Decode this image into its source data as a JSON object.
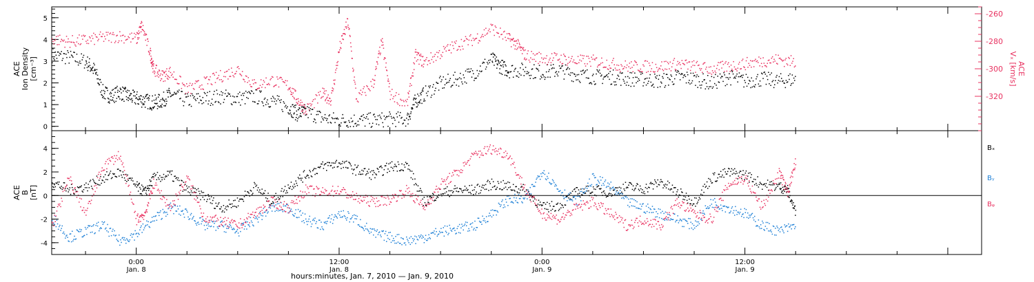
{
  "colors": {
    "black": "#000000",
    "pink": "#e8305f",
    "blue": "#1c7fd6"
  },
  "chart_data": [
    {
      "type": "scatter",
      "panel": "ion-density",
      "ylabel": [
        "ACE",
        "Ion Density",
        "[cm⁻³]"
      ],
      "ylabel_right": [
        "ACE",
        "Vₓ [km/s]"
      ],
      "ylim": [
        -0.2,
        5.5
      ],
      "yticks": [
        0,
        1,
        2,
        3,
        4,
        5
      ],
      "ylim_right": [
        -345,
        -255
      ],
      "yticks_right": [
        -260,
        -280,
        -300,
        -320
      ],
      "xlim_hours": [
        -5,
        50
      ],
      "series": [
        {
          "axis": "left",
          "color": "#000000",
          "points": [
            [
              -5,
              3.3
            ],
            [
              -4,
              3.2
            ],
            [
              -3,
              3.0
            ],
            [
              -2.5,
              2.6
            ],
            [
              -2,
              1.6
            ],
            [
              -1.5,
              1.4
            ],
            [
              -1,
              1.6
            ],
            [
              -0.5,
              1.4
            ],
            [
              0,
              1.3
            ],
            [
              0.5,
              1.2
            ],
            [
              1,
              1.1
            ],
            [
              1.5,
              1.2
            ],
            [
              2,
              1.5
            ],
            [
              3,
              1.2
            ],
            [
              4,
              1.3
            ],
            [
              5,
              1.4
            ],
            [
              6,
              1.3
            ],
            [
              7,
              1.4
            ],
            [
              8,
              1.2
            ],
            [
              9,
              0.9
            ],
            [
              9.5,
              0.6
            ],
            [
              10,
              0.7
            ],
            [
              11,
              0.4
            ],
            [
              12,
              0.3
            ],
            [
              13,
              0.3
            ],
            [
              14,
              0.3
            ],
            [
              15,
              0.35
            ],
            [
              16,
              0.35
            ],
            [
              16.5,
              1.2
            ],
            [
              17,
              1.5
            ],
            [
              18,
              2.0
            ],
            [
              19,
              2.2
            ],
            [
              20,
              2.5
            ],
            [
              21,
              3.1
            ],
            [
              21.5,
              2.8
            ],
            [
              22,
              2.6
            ],
            [
              23,
              2.6
            ],
            [
              24,
              2.5
            ],
            [
              25,
              2.6
            ],
            [
              26,
              2.4
            ],
            [
              27,
              2.3
            ],
            [
              28,
              2.3
            ],
            [
              29,
              2.2
            ],
            [
              30,
              2.2
            ],
            [
              31,
              2.1
            ],
            [
              32,
              2.3
            ],
            [
              33,
              2.2
            ],
            [
              34,
              2.0
            ],
            [
              35,
              2.3
            ],
            [
              36,
              2.1
            ],
            [
              37,
              2.2
            ],
            [
              38,
              2.1
            ],
            [
              39,
              2.2
            ]
          ]
        },
        {
          "axis": "right",
          "color": "#e8305f",
          "points": [
            [
              -5,
              -278
            ],
            [
              -4,
              -280
            ],
            [
              -3,
              -279
            ],
            [
              -2,
              -277
            ],
            [
              -1,
              -276
            ],
            [
              0,
              -278
            ],
            [
              0.3,
              -268
            ],
            [
              0.8,
              -288
            ],
            [
              1,
              -300
            ],
            [
              1.5,
              -305
            ],
            [
              2,
              -302
            ],
            [
              3,
              -315
            ],
            [
              4,
              -310
            ],
            [
              5,
              -305
            ],
            [
              6,
              -300
            ],
            [
              7,
              -312
            ],
            [
              8,
              -308
            ],
            [
              9,
              -312
            ],
            [
              9.5,
              -322
            ],
            [
              10,
              -330
            ],
            [
              11,
              -318
            ],
            [
              11.5,
              -322
            ],
            [
              12,
              -285
            ],
            [
              12.5,
              -265
            ],
            [
              13,
              -322
            ],
            [
              14,
              -310
            ],
            [
              14.5,
              -280
            ],
            [
              15,
              -318
            ],
            [
              16,
              -325
            ],
            [
              16.5,
              -290
            ],
            [
              17,
              -295
            ],
            [
              18,
              -288
            ],
            [
              19,
              -282
            ],
            [
              20,
              -278
            ],
            [
              21,
              -270
            ],
            [
              22,
              -278
            ],
            [
              22.5,
              -282
            ],
            [
              23,
              -290
            ],
            [
              24,
              -292
            ],
            [
              25,
              -292
            ],
            [
              26,
              -294
            ],
            [
              27,
              -294
            ],
            [
              28,
              -296
            ],
            [
              29,
              -298
            ],
            [
              30,
              -298
            ],
            [
              31,
              -298
            ],
            [
              32,
              -296
            ],
            [
              33,
              -298
            ],
            [
              34,
              -300
            ],
            [
              35,
              -298
            ],
            [
              36,
              -296
            ],
            [
              37,
              -294
            ],
            [
              38,
              -293
            ],
            [
              39,
              -295
            ]
          ]
        }
      ]
    },
    {
      "type": "scatter",
      "panel": "magnetic-field",
      "ylabel": [
        "ACE",
        "B",
        "[nT]"
      ],
      "ylim": [
        -5,
        5.5
      ],
      "yticks": [
        -4,
        -2,
        0,
        2,
        4
      ],
      "xlim_hours": [
        -5,
        50
      ],
      "series": [
        {
          "name": "Bₓ",
          "color": "#000000",
          "points": [
            [
              -5,
              1.2
            ],
            [
              -4,
              0.5
            ],
            [
              -3,
              0.8
            ],
            [
              -2,
              1.5
            ],
            [
              -1,
              2.0
            ],
            [
              0,
              0.8
            ],
            [
              0.5,
              0.3
            ],
            [
              1,
              1.5
            ],
            [
              2,
              1.8
            ],
            [
              3,
              0.5
            ],
            [
              4,
              0.0
            ],
            [
              5,
              -1.0
            ],
            [
              6,
              -0.5
            ],
            [
              7,
              0.8
            ],
            [
              8,
              -0.5
            ],
            [
              9,
              0.8
            ],
            [
              10,
              1.8
            ],
            [
              11,
              2.5
            ],
            [
              12,
              2.8
            ],
            [
              13,
              2.2
            ],
            [
              14,
              1.8
            ],
            [
              15,
              2.5
            ],
            [
              16,
              2.6
            ],
            [
              17,
              -0.5
            ],
            [
              18,
              0.3
            ],
            [
              19,
              0.5
            ],
            [
              20,
              0.5
            ],
            [
              21,
              1.0
            ],
            [
              22,
              0.8
            ],
            [
              23,
              0.5
            ],
            [
              24,
              -1.0
            ],
            [
              25,
              -0.8
            ],
            [
              26,
              0.3
            ],
            [
              27,
              0.5
            ],
            [
              28,
              0.3
            ],
            [
              29,
              0.8
            ],
            [
              30,
              0.6
            ],
            [
              31,
              1.2
            ],
            [
              32,
              0.3
            ],
            [
              33,
              -0.5
            ],
            [
              34,
              1.5
            ],
            [
              35,
              2.0
            ],
            [
              36,
              1.8
            ],
            [
              37,
              1.0
            ],
            [
              38,
              0.8
            ],
            [
              38.5,
              0.5
            ],
            [
              39,
              -1.5
            ]
          ]
        },
        {
          "name": "Bᵧ",
          "color": "#1c7fd6",
          "points": [
            [
              -5,
              -1.8
            ],
            [
              -4,
              -3.5
            ],
            [
              -3,
              -3.0
            ],
            [
              -2,
              -2.5
            ],
            [
              -1,
              -3.8
            ],
            [
              0,
              -3.2
            ],
            [
              1,
              -2.0
            ],
            [
              2,
              -1.0
            ],
            [
              3,
              -1.5
            ],
            [
              4,
              -2.5
            ],
            [
              5,
              -2.5
            ],
            [
              6,
              -3.0
            ],
            [
              7,
              -2.0
            ],
            [
              8,
              -1.0
            ],
            [
              9,
              -1.0
            ],
            [
              10,
              -2.0
            ],
            [
              11,
              -2.5
            ],
            [
              12,
              -1.5
            ],
            [
              13,
              -2.0
            ],
            [
              14,
              -3.2
            ],
            [
              15,
              -3.5
            ],
            [
              16,
              -3.8
            ],
            [
              17,
              -3.5
            ],
            [
              18,
              -3.0
            ],
            [
              19,
              -2.8
            ],
            [
              20,
              -2.5
            ],
            [
              21,
              -1.5
            ],
            [
              22,
              -0.3
            ],
            [
              23,
              -0.3
            ],
            [
              24,
              2.2
            ],
            [
              25,
              0.5
            ],
            [
              26,
              -0.5
            ],
            [
              27,
              1.5
            ],
            [
              28,
              0.8
            ],
            [
              29,
              -0.5
            ],
            [
              30,
              -1.0
            ],
            [
              31,
              -1.5
            ],
            [
              32,
              -2.0
            ],
            [
              33,
              -2.5
            ],
            [
              34,
              -0.5
            ],
            [
              35,
              -1.0
            ],
            [
              36,
              -1.5
            ],
            [
              37,
              -2.5
            ],
            [
              38,
              -3.0
            ],
            [
              39,
              -2.5
            ]
          ]
        },
        {
          "name": "Bᵩ",
          "color": "#e8305f",
          "points": [
            [
              -5,
              -2.5
            ],
            [
              -4,
              1.5
            ],
            [
              -3,
              -1.5
            ],
            [
              -2,
              2.5
            ],
            [
              -1,
              3.5
            ],
            [
              0,
              -2.0
            ],
            [
              0.5,
              -1.5
            ],
            [
              1,
              1.0
            ],
            [
              2,
              -1.0
            ],
            [
              3,
              1.5
            ],
            [
              4,
              -1.8
            ],
            [
              5,
              -2.2
            ],
            [
              6,
              -2.5
            ],
            [
              7,
              -1.5
            ],
            [
              8,
              -0.5
            ],
            [
              9,
              -1.0
            ],
            [
              10,
              0.5
            ],
            [
              11,
              0.3
            ],
            [
              12,
              0.5
            ],
            [
              13,
              -0.2
            ],
            [
              14,
              -0.5
            ],
            [
              15,
              -0.3
            ],
            [
              16,
              0.5
            ],
            [
              17,
              -1.0
            ],
            [
              18,
              1.0
            ],
            [
              19,
              2.0
            ],
            [
              20,
              3.5
            ],
            [
              21,
              4.0
            ],
            [
              22,
              3.5
            ],
            [
              23,
              0.5
            ],
            [
              24,
              -1.5
            ],
            [
              25,
              -2.0
            ],
            [
              26,
              -1.0
            ],
            [
              27,
              -0.5
            ],
            [
              28,
              -1.5
            ],
            [
              29,
              -2.5
            ],
            [
              30,
              -2.0
            ],
            [
              31,
              -2.5
            ],
            [
              32,
              -0.5
            ],
            [
              33,
              -1.5
            ],
            [
              34,
              -2.0
            ],
            [
              35,
              1.0
            ],
            [
              36,
              1.5
            ],
            [
              37,
              -1.0
            ],
            [
              38,
              2.0
            ],
            [
              38.5,
              0.3
            ],
            [
              39,
              3.0
            ]
          ]
        }
      ],
      "legend_position": "right"
    }
  ],
  "x_axis": {
    "ticks": [
      {
        "hours": 0,
        "time": "0:00",
        "day": "Jan. 8"
      },
      {
        "hours": 12,
        "time": "12:00",
        "day": "Jan. 8"
      },
      {
        "hours": 24,
        "time": "0:00",
        "day": "Jan. 9"
      },
      {
        "hours": 36,
        "time": "12:00",
        "day": "Jan. 9"
      }
    ],
    "label": "hours:minutes, Jan.  7, 2010 — Jan.  9, 2010"
  }
}
